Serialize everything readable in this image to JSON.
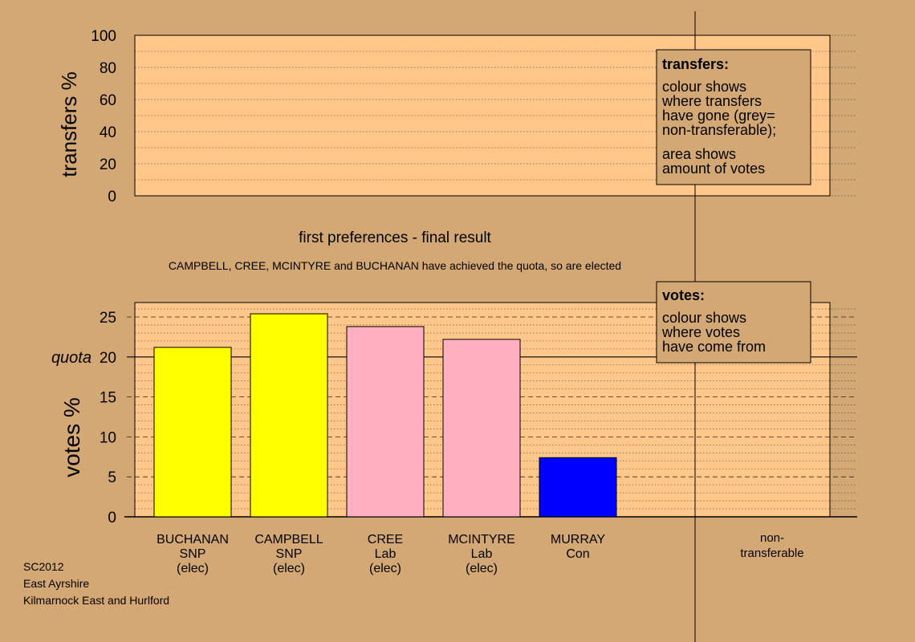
{
  "colors": {
    "background": "#d4a875",
    "panel": "#ffc88a",
    "snp": "#ffff00",
    "lab": "#ffb0c0",
    "con": "#0000ff",
    "note_box": "#d4a875"
  },
  "transfers_panel": {
    "ylabel": "transfers %",
    "ticks": [
      "0",
      "20",
      "40",
      "60",
      "80",
      "100"
    ],
    "legend": {
      "title": "transfers:",
      "lines1": [
        "colour shows",
        "where transfers",
        "have gone (grey=",
        "non-transferable);"
      ],
      "lines2": [
        "area shows",
        "amount of votes"
      ]
    }
  },
  "stage_title": "first preferences - final result",
  "stage_note": "CAMPBELL, CREE, MCINTYRE and BUCHANAN have achieved the quota, so are elected",
  "votes_panel": {
    "ylabel": "votes %",
    "quota_label": "quota",
    "legend": {
      "title": "votes:",
      "lines": [
        "colour shows",
        "where votes",
        "have come from"
      ]
    }
  },
  "chart_data": [
    {
      "type": "bar",
      "title": "",
      "ylabel": "transfers %",
      "ylim": [
        0,
        100
      ],
      "yticks": [
        0,
        20,
        40,
        60,
        80,
        100
      ],
      "values": []
    },
    {
      "type": "bar",
      "title": "first preferences - final result",
      "ylabel": "votes %",
      "ylim": [
        0,
        26.5
      ],
      "yticks": [
        0,
        5,
        10,
        15,
        20,
        25
      ],
      "quota": 20,
      "categories": [
        "BUCHANAN",
        "CAMPBELL",
        "CREE",
        "MCINTYRE",
        "MURRAY"
      ],
      "parties": [
        "SNP",
        "SNP",
        "Lab",
        "Lab",
        "Con"
      ],
      "status": [
        "(elec)",
        "(elec)",
        "(elec)",
        "(elec)",
        ""
      ],
      "values": [
        21.2,
        25.4,
        23.8,
        22.2,
        7.4
      ],
      "bar_colors": [
        "#ffff00",
        "#ffff00",
        "#ffb0c0",
        "#ffb0c0",
        "#0000ff"
      ],
      "extra_category": [
        "non-",
        "transferable"
      ]
    }
  ],
  "footer": [
    "SC2012",
    "East Ayrshire",
    "Kilmarnock East and Hurlford"
  ]
}
